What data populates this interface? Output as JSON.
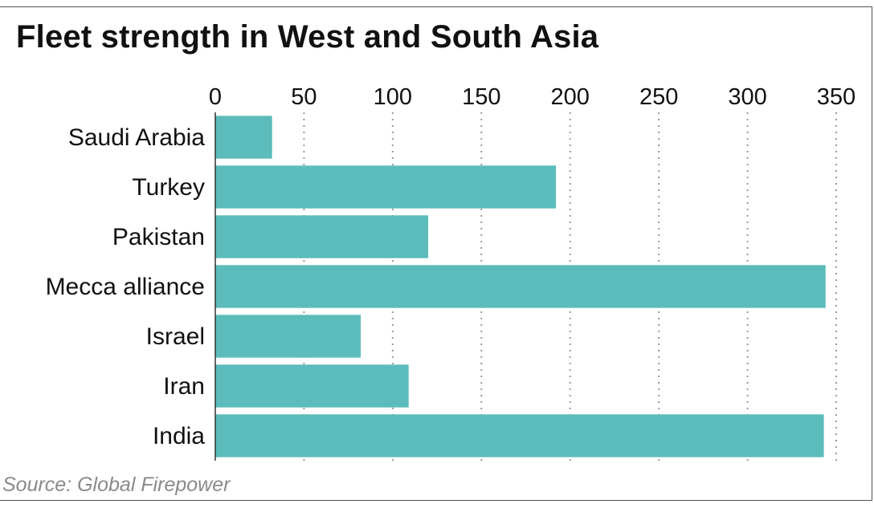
{
  "title": "Fleet strength in West and South Asia",
  "source": "Source: Global Firepower",
  "colors": {
    "bar": "#5bbcbb",
    "grid": "#9a9a9a",
    "axis": "#333333"
  },
  "chart_data": {
    "type": "bar",
    "orientation": "horizontal",
    "title": "Fleet strength in West and South Asia",
    "categories": [
      "Saudi Arabia",
      "Turkey",
      "Pakistan",
      "Mecca alliance",
      "Israel",
      "Iran",
      "India"
    ],
    "values": [
      32,
      192,
      120,
      344,
      82,
      109,
      343
    ],
    "xlim": [
      0,
      350
    ],
    "xticks": [
      0,
      50,
      100,
      150,
      200,
      250,
      300,
      350
    ],
    "xaxis_position": "top",
    "grid": "vertical dotted",
    "xlabel": "",
    "ylabel": ""
  }
}
